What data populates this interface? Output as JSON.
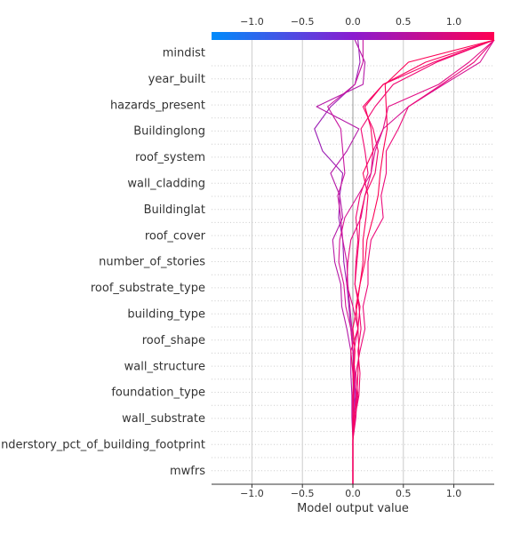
{
  "chart_data": {
    "type": "line",
    "subtype": "shap-decision-plot",
    "xlabel": "Model output value",
    "xlim": [
      -1.4,
      1.4
    ],
    "xticks": [
      -1.0,
      -0.5,
      0.0,
      0.5,
      1.0
    ],
    "xtick_labels": [
      "−1.0",
      "−0.5",
      "0.0",
      "0.5",
      "1.0"
    ],
    "base_value": 0.0,
    "colorbar": {
      "position": "top",
      "low_color": "#008bfb",
      "high_color": "#ff0052"
    },
    "grid": {
      "vertical": true,
      "horizontal_dotted": true
    },
    "features": [
      "mindist",
      "year_built",
      "hazards_present",
      "Buildinglong",
      "roof_system",
      "wall_cladding",
      "Buildinglat",
      "roof_cover",
      "number_of_stories",
      "roof_substrate_type",
      "building_type",
      "roof_shape",
      "wall_structure",
      "foundation_type",
      "wall_substrate",
      "understory_pct_of_building_footprint",
      "mwfrs"
    ],
    "series": [
      {
        "color": "#9b1fb5",
        "values": [
          0.0,
          0.0,
          0.0,
          0.01,
          0.02,
          0.01,
          0.0,
          -0.02,
          -0.04,
          -0.06,
          -0.09,
          -0.1,
          -0.14,
          -0.13,
          -0.1,
          -0.3,
          -0.38,
          -0.22,
          0.02,
          0.07,
          0.05
        ]
      },
      {
        "color": "#b51aa8",
        "values": [
          0.0,
          0.0,
          0.0,
          -0.01,
          -0.01,
          -0.02,
          -0.02,
          -0.06,
          -0.11,
          -0.12,
          -0.18,
          -0.2,
          -0.1,
          -0.13,
          -0.22,
          -0.06,
          0.06,
          -0.36,
          0.1,
          0.12,
          0.02
        ]
      },
      {
        "color": "#c817a0",
        "values": [
          0.0,
          0.0,
          0.0,
          0.0,
          0.01,
          0.02,
          0.0,
          -0.01,
          -0.03,
          -0.05,
          -0.06,
          -0.1,
          -0.12,
          -0.15,
          -0.08,
          -0.1,
          -0.12,
          -0.25,
          0.02,
          0.1,
          0.1
        ]
      },
      {
        "color": "#d61594",
        "values": [
          0.0,
          0.0,
          0.0,
          0.01,
          0.03,
          0.02,
          0.0,
          -0.02,
          -0.07,
          -0.09,
          -0.14,
          -0.13,
          -0.08,
          0.05,
          0.18,
          0.22,
          0.3,
          0.55,
          0.9,
          1.26,
          1.4
        ]
      },
      {
        "color": "#e20f86",
        "values": [
          0.0,
          0.0,
          0.0,
          0.03,
          0.04,
          0.0,
          0.01,
          0.05,
          0.0,
          -0.06,
          -0.05,
          -0.02,
          0.08,
          0.12,
          0.18,
          0.2,
          0.3,
          0.35,
          0.85,
          1.15,
          1.4
        ]
      },
      {
        "color": "#ec0b7a",
        "values": [
          0.0,
          0.0,
          0.0,
          0.02,
          0.05,
          0.03,
          0.07,
          0.12,
          0.1,
          0.15,
          0.15,
          0.18,
          0.3,
          0.28,
          0.33,
          0.33,
          0.45,
          0.55,
          0.88,
          1.2,
          1.4
        ]
      },
      {
        "color": "#f00872",
        "values": [
          0.0,
          0.0,
          0.0,
          0.02,
          0.06,
          0.07,
          0.05,
          0.08,
          0.06,
          0.02,
          0.03,
          0.05,
          0.03,
          0.07,
          0.15,
          0.12,
          0.08,
          0.22,
          0.4,
          0.83,
          1.4
        ]
      },
      {
        "color": "#f5066a",
        "values": [
          0.0,
          0.0,
          0.0,
          0.0,
          0.01,
          0.0,
          -0.02,
          0.05,
          0.07,
          0.02,
          0.04,
          0.06,
          0.07,
          0.12,
          0.22,
          0.25,
          0.2,
          0.1,
          0.3,
          0.8,
          1.4
        ]
      },
      {
        "color": "#f9045f",
        "values": [
          0.0,
          0.0,
          0.0,
          0.01,
          0.04,
          0.05,
          0.06,
          0.05,
          0.03,
          0.07,
          0.1,
          0.1,
          0.13,
          0.15,
          0.1,
          0.2,
          0.18,
          0.12,
          0.3,
          0.72,
          1.4
        ]
      },
      {
        "color": "#fc0256",
        "values": [
          0.0,
          0.0,
          0.0,
          0.0,
          0.0,
          0.01,
          0.02,
          0.0,
          0.04,
          0.07,
          0.12,
          0.14,
          0.2,
          0.25,
          0.27,
          0.3,
          0.34,
          0.33,
          0.32,
          0.55,
          1.4
        ]
      }
    ]
  }
}
